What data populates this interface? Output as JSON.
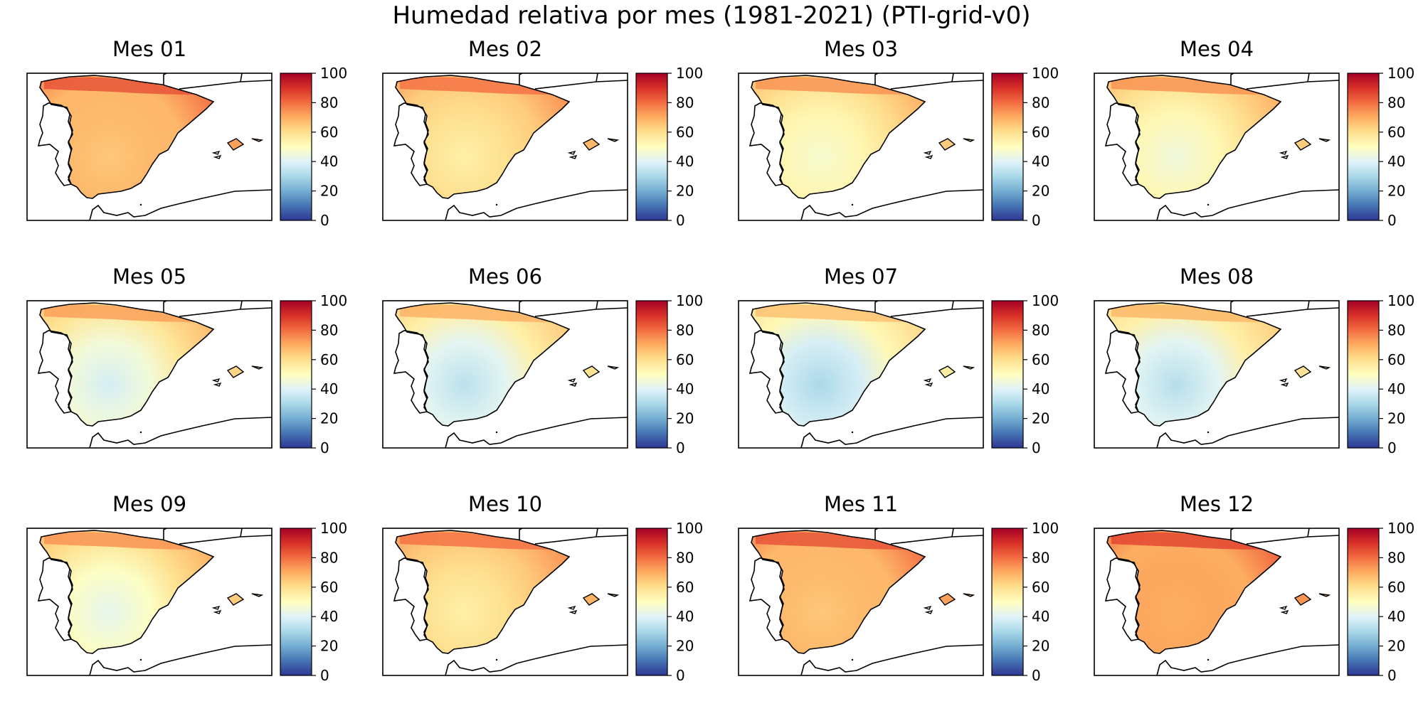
{
  "title": "Humedad relativa por mes (1981-2021) (PTI-grid-v0)",
  "chart_data": {
    "type": "heatmap",
    "variable": "Humedad relativa",
    "period": "1981-2021",
    "dataset": "PTI-grid-v0",
    "colormap": "RdYlBu_r",
    "colorbar": {
      "min": 0,
      "max": 100,
      "ticks": [
        "0",
        "20",
        "40",
        "60",
        "80",
        "100"
      ]
    },
    "panels": [
      {
        "title": "Mes 01",
        "north": 80,
        "interior": 65,
        "south": 70,
        "east": 68
      },
      {
        "title": "Mes 02",
        "north": 75,
        "interior": 55,
        "south": 64,
        "east": 64
      },
      {
        "title": "Mes 03",
        "north": 70,
        "interior": 47,
        "south": 58,
        "east": 60
      },
      {
        "title": "Mes 04",
        "north": 70,
        "interior": 45,
        "south": 58,
        "east": 60
      },
      {
        "title": "Mes 05",
        "north": 68,
        "interior": 38,
        "south": 52,
        "east": 58
      },
      {
        "title": "Mes 06",
        "north": 65,
        "interior": 33,
        "south": 48,
        "east": 55
      },
      {
        "title": "Mes 07",
        "north": 62,
        "interior": 30,
        "south": 45,
        "east": 52
      },
      {
        "title": "Mes 08",
        "north": 64,
        "interior": 32,
        "south": 48,
        "east": 55
      },
      {
        "title": "Mes 09",
        "north": 70,
        "interior": 42,
        "south": 55,
        "east": 60
      },
      {
        "title": "Mes 10",
        "north": 75,
        "interior": 55,
        "south": 64,
        "east": 65
      },
      {
        "title": "Mes 11",
        "north": 80,
        "interior": 65,
        "south": 70,
        "east": 68
      },
      {
        "title": "Mes 12",
        "north": 82,
        "interior": 70,
        "south": 72,
        "east": 70
      }
    ]
  }
}
